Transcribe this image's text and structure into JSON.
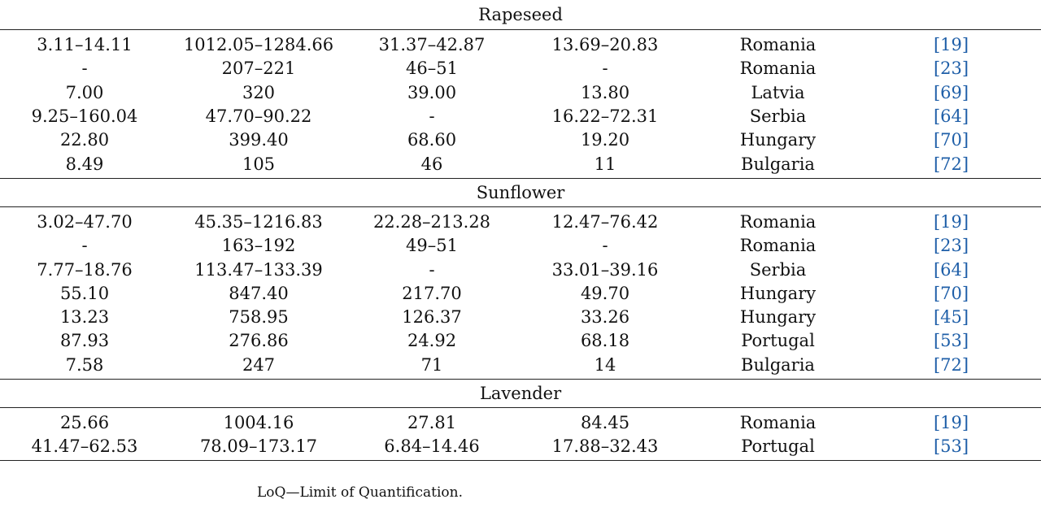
{
  "sections": [
    {
      "name": "Rapeseed",
      "rows": [
        {
          "c1": "3.11–14.11",
          "c2": "1012.05–1284.66",
          "c3": "31.37–42.87",
          "c4": "13.69–20.83",
          "country": "Romania",
          "ref": "19"
        },
        {
          "c1": "-",
          "c2": "207–221",
          "c3": "46–51",
          "c4": "-",
          "country": "Romania",
          "ref": "23"
        },
        {
          "c1": "7.00",
          "c2": "320",
          "c3": "39.00",
          "c4": "13.80",
          "country": "Latvia",
          "ref": "69"
        },
        {
          "c1": "9.25–160.04",
          "c2": "47.70–90.22",
          "c3": "-",
          "c4": "16.22–72.31",
          "country": "Serbia",
          "ref": "64"
        },
        {
          "c1": "22.80",
          "c2": "399.40",
          "c3": "68.60",
          "c4": "19.20",
          "country": "Hungary",
          "ref": "70"
        },
        {
          "c1": "8.49",
          "c2": "105",
          "c3": "46",
          "c4": "11",
          "country": "Bulgaria",
          "ref": "72"
        }
      ]
    },
    {
      "name": "Sunflower",
      "rows": [
        {
          "c1": "3.02–47.70",
          "c2": "45.35–1216.83",
          "c3": "22.28–213.28",
          "c4": "12.47–76.42",
          "country": "Romania",
          "ref": "19"
        },
        {
          "c1": "-",
          "c2": "163–192",
          "c3": "49–51",
          "c4": "-",
          "country": "Romania",
          "ref": "23"
        },
        {
          "c1": "7.77–18.76",
          "c2": "113.47–133.39",
          "c3": "-",
          "c4": "33.01–39.16",
          "country": "Serbia",
          "ref": "64"
        },
        {
          "c1": "55.10",
          "c2": "847.40",
          "c3": "217.70",
          "c4": "49.70",
          "country": "Hungary",
          "ref": "70"
        },
        {
          "c1": "13.23",
          "c2": "758.95",
          "c3": "126.37",
          "c4": "33.26",
          "country": "Hungary",
          "ref": "45"
        },
        {
          "c1": "87.93",
          "c2": "276.86",
          "c3": "24.92",
          "c4": "68.18",
          "country": "Portugal",
          "ref": "53"
        },
        {
          "c1": "7.58",
          "c2": "247",
          "c3": "71",
          "c4": "14",
          "country": "Bulgaria",
          "ref": "72"
        }
      ]
    },
    {
      "name": "Lavender",
      "rows": [
        {
          "c1": "25.66",
          "c2": "1004.16",
          "c3": "27.81",
          "c4": "84.45",
          "country": "Romania",
          "ref": "19"
        },
        {
          "c1": "41.47–62.53",
          "c2": "78.09–173.17",
          "c3": "6.84–14.46",
          "c4": "17.88–32.43",
          "country": "Portugal",
          "ref": "53"
        }
      ]
    }
  ],
  "footnote": "LoQ—Limit of Quantification.",
  "colors": {
    "reference_link": "#1f5fa8",
    "rule": "#222222"
  }
}
